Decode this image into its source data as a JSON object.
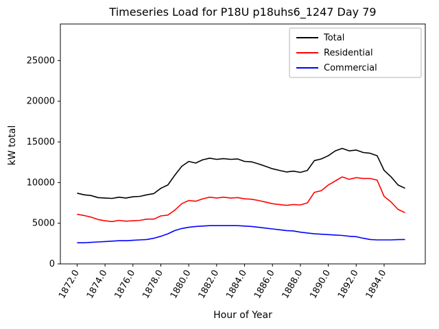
{
  "chart_data": {
    "type": "line",
    "title": "Timeseries Load for P18U p18uhs6_1247  Day 79",
    "xlabel": "Hour of Year",
    "ylabel": "kW total",
    "xlim": [
      1870.8,
      1896.95
    ],
    "ylim": [
      0,
      29500
    ],
    "xticks": [
      1872,
      1874,
      1876,
      1878,
      1880,
      1882,
      1884,
      1886,
      1888,
      1890,
      1892,
      1894
    ],
    "xtick_labels": [
      "1872.0",
      "1874.0",
      "1876.0",
      "1878.0",
      "1880.0",
      "1882.0",
      "1884.0",
      "1886.0",
      "1888.0",
      "1890.0",
      "1892.0",
      "1894.0"
    ],
    "yticks": [
      0,
      5000,
      10000,
      15000,
      20000,
      25000
    ],
    "ytick_labels": [
      "0",
      "5000",
      "10000",
      "15000",
      "20000",
      "25000"
    ],
    "grid": false,
    "legend_position": "upper right",
    "x": [
      1872.0,
      1872.5,
      1873.0,
      1873.5,
      1874.0,
      1874.5,
      1875.0,
      1875.5,
      1876.0,
      1876.5,
      1877.0,
      1877.5,
      1878.0,
      1878.5,
      1879.0,
      1879.5,
      1880.0,
      1880.5,
      1881.0,
      1881.5,
      1882.0,
      1882.5,
      1883.0,
      1883.5,
      1884.0,
      1884.5,
      1885.0,
      1885.5,
      1886.0,
      1886.5,
      1887.0,
      1887.5,
      1888.0,
      1888.5,
      1889.0,
      1889.5,
      1890.0,
      1890.5,
      1891.0,
      1891.5,
      1892.0,
      1892.5,
      1893.0,
      1893.5,
      1894.0,
      1894.5,
      1895.0,
      1895.5
    ],
    "series": [
      {
        "name": "Total",
        "color": "#000000",
        "values": [
          8700,
          8500,
          8400,
          8150,
          8100,
          8050,
          8200,
          8100,
          8250,
          8300,
          8500,
          8650,
          9300,
          9700,
          10900,
          12000,
          12600,
          12400,
          12800,
          13000,
          12850,
          12950,
          12850,
          12900,
          12600,
          12550,
          12300,
          12000,
          11700,
          11500,
          11300,
          11400,
          11250,
          11500,
          12700,
          12900,
          13300,
          13900,
          14200,
          13900,
          14000,
          13700,
          13600,
          13300,
          11500,
          10700,
          9700,
          9300
        ]
      },
      {
        "name": "Residential",
        "color": "#ff0000",
        "values": [
          6100,
          5950,
          5750,
          5450,
          5300,
          5200,
          5350,
          5250,
          5300,
          5350,
          5500,
          5500,
          5900,
          6000,
          6600,
          7400,
          7800,
          7700,
          8000,
          8200,
          8100,
          8200,
          8100,
          8150,
          8000,
          7950,
          7800,
          7600,
          7400,
          7300,
          7200,
          7300,
          7250,
          7500,
          8800,
          9000,
          9700,
          10200,
          10700,
          10400,
          10600,
          10500,
          10500,
          10300,
          8300,
          7600,
          6700,
          6300
        ]
      },
      {
        "name": "Commercial",
        "color": "#0000ff",
        "values": [
          2600,
          2600,
          2650,
          2700,
          2750,
          2800,
          2850,
          2850,
          2900,
          2950,
          3000,
          3150,
          3400,
          3700,
          4100,
          4350,
          4500,
          4600,
          4650,
          4700,
          4700,
          4700,
          4700,
          4700,
          4650,
          4600,
          4500,
          4400,
          4300,
          4200,
          4100,
          4050,
          3900,
          3800,
          3700,
          3650,
          3600,
          3550,
          3500,
          3400,
          3350,
          3150,
          3000,
          2950,
          2950,
          2950,
          2980,
          3000
        ]
      }
    ]
  }
}
